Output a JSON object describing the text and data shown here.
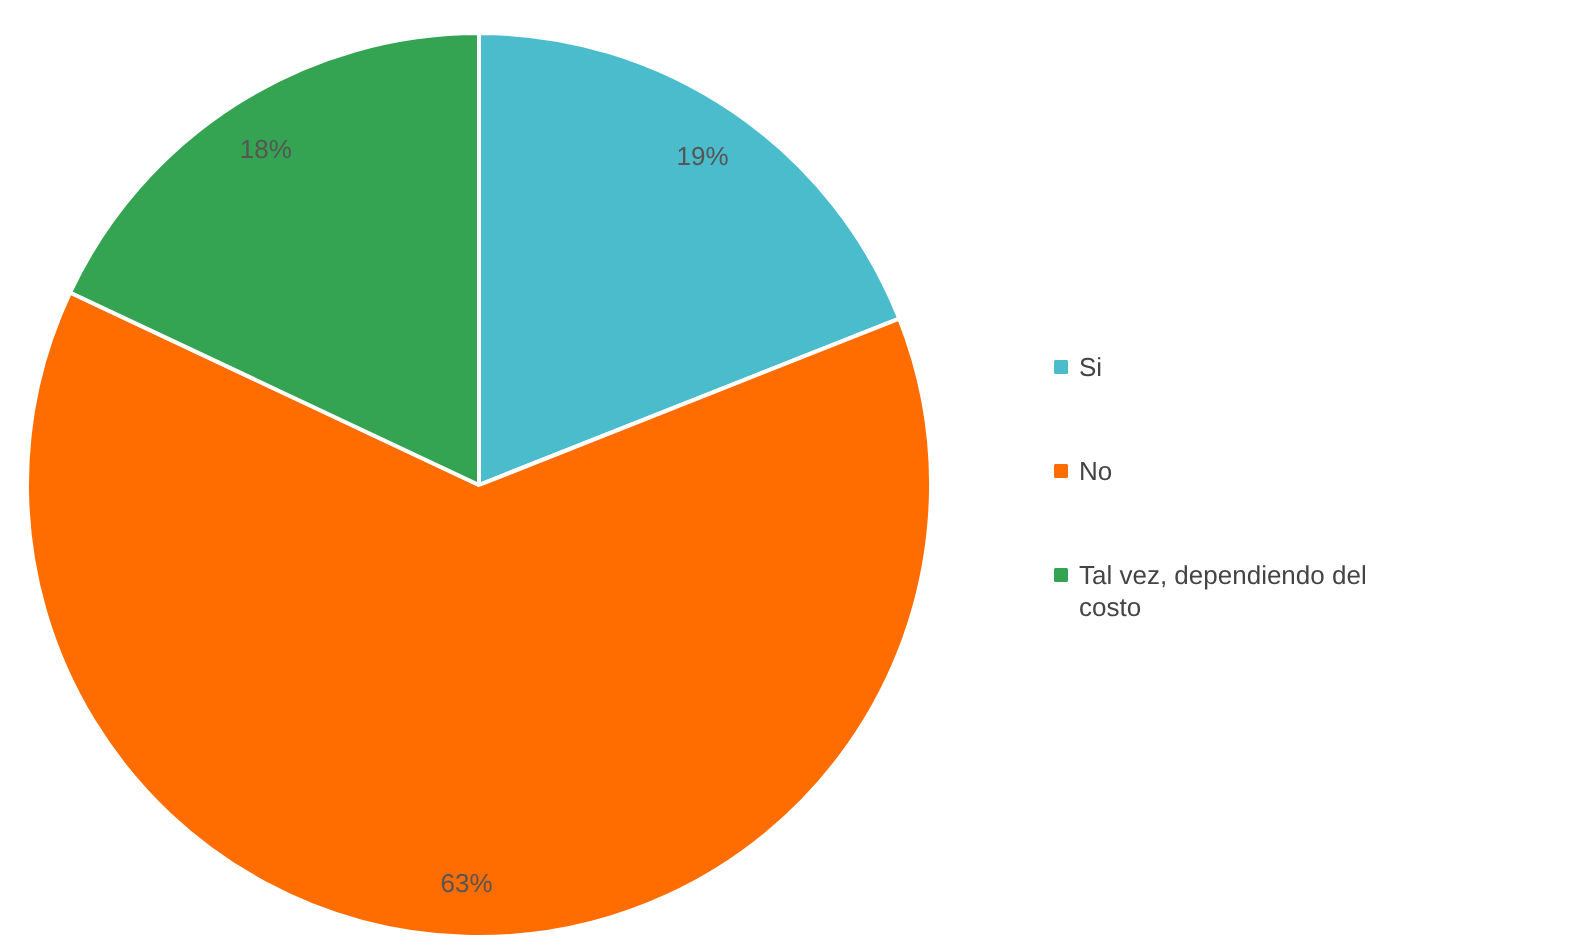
{
  "chart_data": {
    "type": "pie",
    "categories": [
      "Si",
      "No",
      "Tal vez, dependiendo del costo"
    ],
    "values": [
      19,
      63,
      18
    ],
    "colors": [
      "#4bbccb",
      "#ff6d00",
      "#34a452"
    ],
    "value_labels": [
      "19%",
      "63%",
      "18%"
    ],
    "legend": "right"
  }
}
